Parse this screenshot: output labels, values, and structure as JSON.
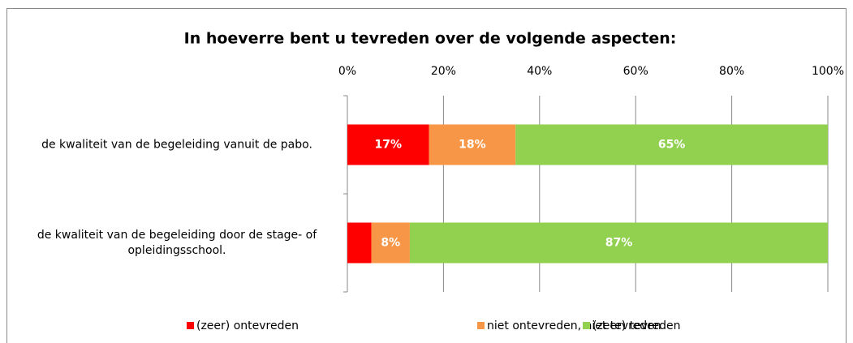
{
  "chart_data": {
    "type": "stacked_barh",
    "title": "In hoeverre bent u tevreden over de volgende aspecten:",
    "categories": [
      "de kwaliteit van de begeleiding vanuit de pabo.",
      "de kwaliteit van de begeleiding door de stage- of opleidingsschool."
    ],
    "series": [
      {
        "name": "(zeer) ontevreden",
        "color": "#ff0000",
        "values": [
          17,
          5
        ],
        "value_labels": [
          "17%",
          null
        ]
      },
      {
        "name": "niet ontevreden, niet tevreden",
        "color": "#f79646",
        "values": [
          18,
          8
        ],
        "value_labels": [
          "18%",
          "8%"
        ]
      },
      {
        "name": "(zeer) tevreden",
        "color": "#92d050",
        "values": [
          65,
          87
        ],
        "value_labels": [
          "65%",
          "87%"
        ]
      }
    ],
    "xlim": [
      0,
      100
    ],
    "xticks": [
      {
        "value": 0,
        "label": "0%"
      },
      {
        "value": 20,
        "label": "20%"
      },
      {
        "value": 40,
        "label": "40%"
      },
      {
        "value": 60,
        "label": "60%"
      },
      {
        "value": 80,
        "label": "80%"
      },
      {
        "value": 100,
        "label": "100%"
      }
    ],
    "grid": true,
    "legend": "bottom"
  }
}
